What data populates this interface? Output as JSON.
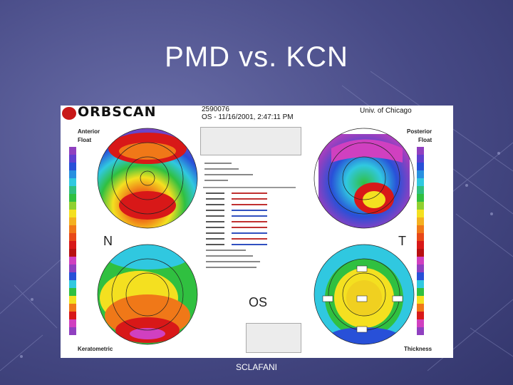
{
  "slide": {
    "title": "PMD vs. KCN",
    "footer": "SCLAFANI"
  },
  "orbscan": {
    "patient_id": "2590076",
    "exam_line": "OS - 11/16/2001, 2:47:11 PM",
    "institution": "Univ. of Chicago",
    "quadrants": {
      "top_left": {
        "title1": "Anterior",
        "title2": "Float"
      },
      "top_right": {
        "title1": "Posterior",
        "title2": "Float"
      },
      "bottom_left": {
        "title1": "Keratometric"
      },
      "bottom_right": {
        "title1": "Thickness"
      }
    },
    "nasal_label": "N",
    "temporal_label": "T",
    "eye_label": "OS",
    "colors": {
      "red": "#d81818",
      "orange": "#f07818",
      "yellow": "#f4e020",
      "green": "#30c040",
      "cyan": "#30c8e0",
      "blue": "#2850d8",
      "purple": "#9040c0",
      "magenta": "#d040c0"
    }
  }
}
